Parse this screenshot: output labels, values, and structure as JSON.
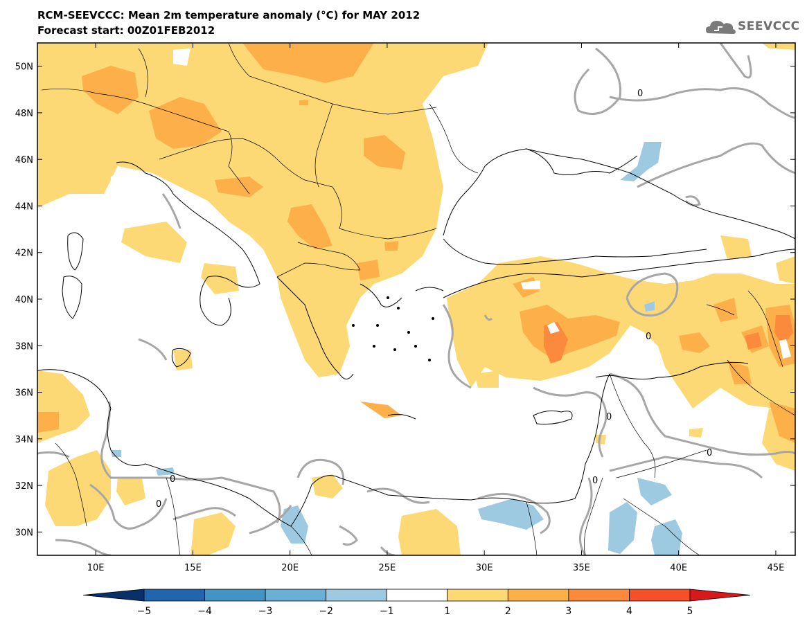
{
  "header": {
    "title": "RCM-SEEVCCC: Mean 2m temperature anomaly (°C) for MAY 2012",
    "subtitle": "Forecast start: 00Z01FEB2012"
  },
  "logo": {
    "text": "SEEVCCC",
    "icon": "cloud-icon"
  },
  "map": {
    "lon_range": [
      7,
      46
    ],
    "lat_range": [
      29,
      51
    ],
    "lon_ticks": [
      "10E",
      "15E",
      "20E",
      "25E",
      "30E",
      "35E",
      "40E",
      "45E"
    ],
    "lat_ticks": [
      "50N",
      "48N",
      "46N",
      "44N",
      "42N",
      "40N",
      "38N",
      "36N",
      "34N",
      "32N",
      "30N"
    ],
    "contour_labels": [
      "0",
      "0",
      "0",
      "0",
      "0",
      "0",
      "0"
    ]
  },
  "colorbar": {
    "labels": [
      "−5",
      "−4",
      "−3",
      "−2",
      "−1",
      "1",
      "2",
      "3",
      "4",
      "5"
    ],
    "colors": [
      "#08306b",
      "#2166ac",
      "#4393c3",
      "#6baed6",
      "#9ecae1",
      "#ffffff",
      "#fdd976",
      "#fdb04a",
      "#fc8a3d",
      "#f4502a",
      "#d7191c"
    ]
  },
  "colors": {
    "anomaly_1_2": "#fdd976",
    "anomaly_2_3": "#fdb04a",
    "anomaly_3_4": "#fc8a3d",
    "anomaly_m1_m2": "#9ecae1",
    "contour": "#a6a6a6",
    "border": "#000000"
  }
}
